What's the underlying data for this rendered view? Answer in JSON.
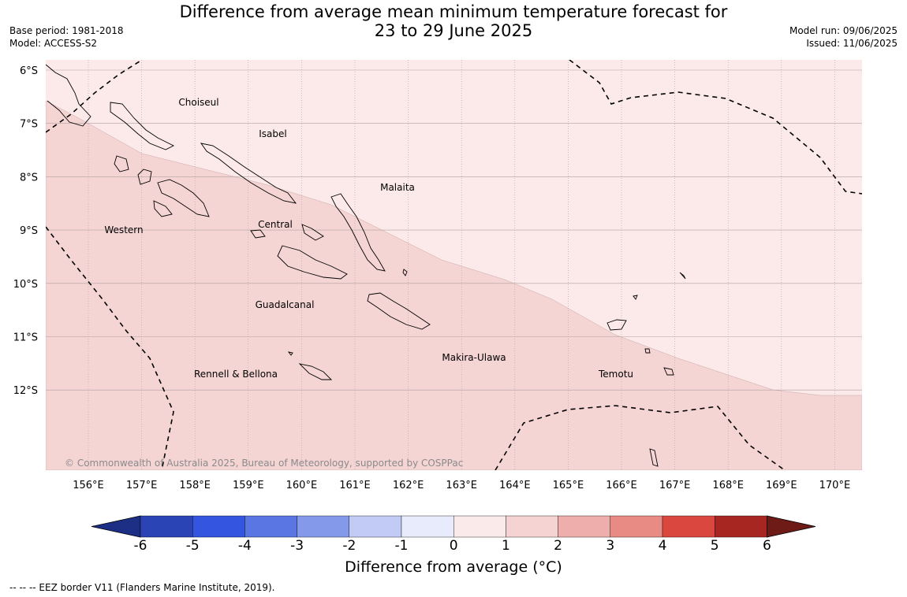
{
  "header": {
    "title_line1": "Difference from average mean minimum temperature forecast for",
    "title_line2": "23 to 29 June 2025",
    "base_period": "Base period: 1981-2018",
    "model": "Model: ACCESS-S2",
    "model_run": "Model run: 09/06/2025",
    "issued": "Issued: 11/06/2025"
  },
  "map": {
    "lat_labels": [
      "6°S",
      "7°S",
      "8°S",
      "9°S",
      "10°S",
      "11°S",
      "12°S"
    ],
    "lon_labels": [
      "156°E",
      "157°E",
      "158°E",
      "159°E",
      "160°E",
      "161°E",
      "162°E",
      "163°E",
      "164°E",
      "165°E",
      "166°E",
      "167°E",
      "168°E",
      "169°E",
      "170°E"
    ],
    "regions": [
      {
        "name": "Choiseul"
      },
      {
        "name": "Isabel"
      },
      {
        "name": "Malaita"
      },
      {
        "name": "Western"
      },
      {
        "name": "Central"
      },
      {
        "name": "Guadalcanal"
      },
      {
        "name": "Makira-Ulawa"
      },
      {
        "name": "Rennell & Bellona"
      },
      {
        "name": "Temotu"
      }
    ],
    "copyright": "© Commonwealth of Australia 2025, Bureau of Meteorology, supported by COSPPac",
    "colors": {
      "band_0_1": "#fbeae9",
      "band_1_2": "#f5d5d4"
    }
  },
  "colorbar": {
    "title": "Difference from average (°C)",
    "ticks": [
      "-6",
      "-5",
      "-4",
      "-3",
      "-2",
      "-1",
      "0",
      "1",
      "2",
      "3",
      "4",
      "5",
      "6"
    ],
    "colors": [
      "#1d2f84",
      "#2b44b5",
      "#3355e0",
      "#5a76e3",
      "#8599ea",
      "#c2cbf5",
      "#e8ebfb",
      "#fbeaea",
      "#f5d3d2",
      "#eeaeab",
      "#e88b84",
      "#d9473f",
      "#a82622",
      "#6e1a17"
    ]
  },
  "footer": {
    "eez_note": "--  --  -- EEZ border V11 (Flanders Marine Institute, 2019)."
  }
}
